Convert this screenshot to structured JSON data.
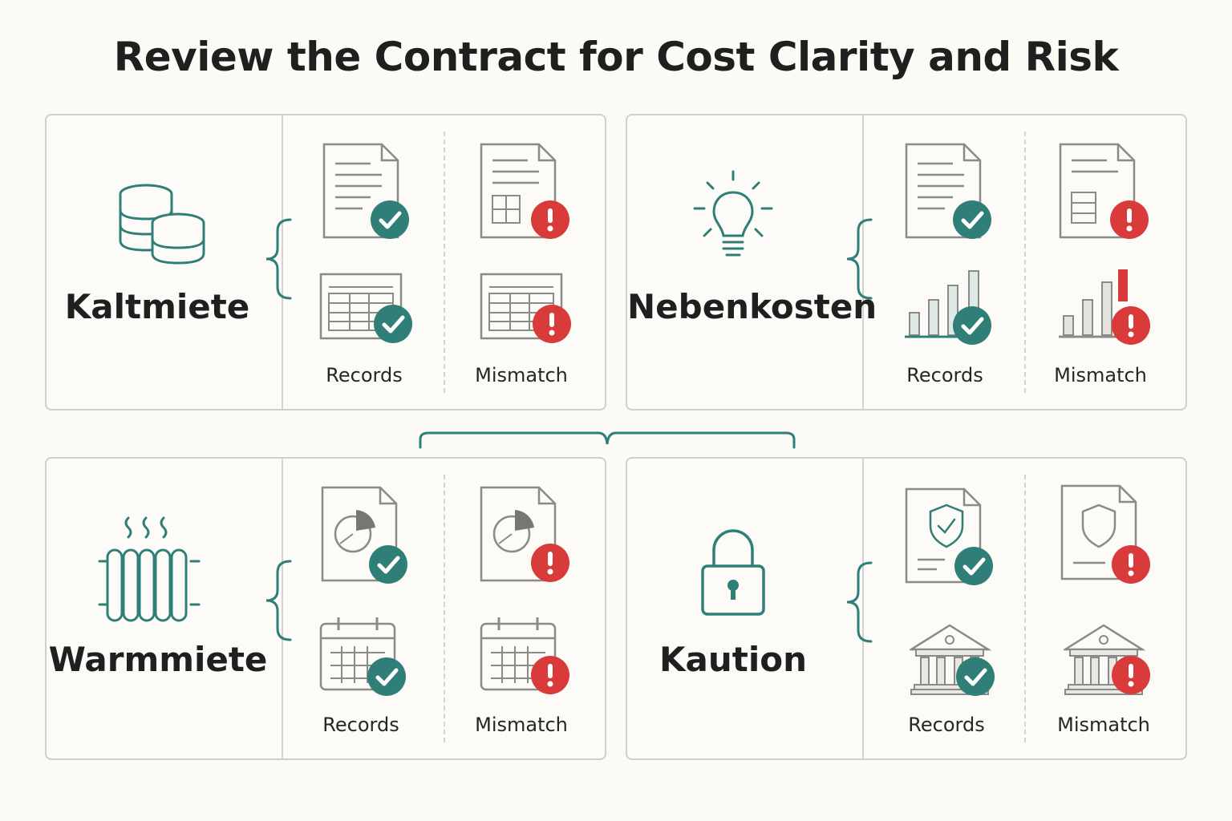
{
  "title": "Review the Contract for Cost Clarity and Risk",
  "colors": {
    "teal": "#2f7f78",
    "red": "#d93a3a",
    "gray": "#8a8a86"
  },
  "panels": [
    {
      "label": "Kaltmiete",
      "category_icon": "coins-icon",
      "records_label": "Records",
      "mismatch_label": "Mismatch"
    },
    {
      "label": "Nebenkosten",
      "category_icon": "lightbulb-icon",
      "records_label": "Records",
      "mismatch_label": "Mismatch"
    },
    {
      "label": "Warmmiete",
      "category_icon": "radiator-icon",
      "records_label": "Records",
      "mismatch_label": "Mismatch"
    },
    {
      "label": "Kaution",
      "category_icon": "padlock-icon",
      "records_label": "Records",
      "mismatch_label": "Mismatch"
    }
  ]
}
